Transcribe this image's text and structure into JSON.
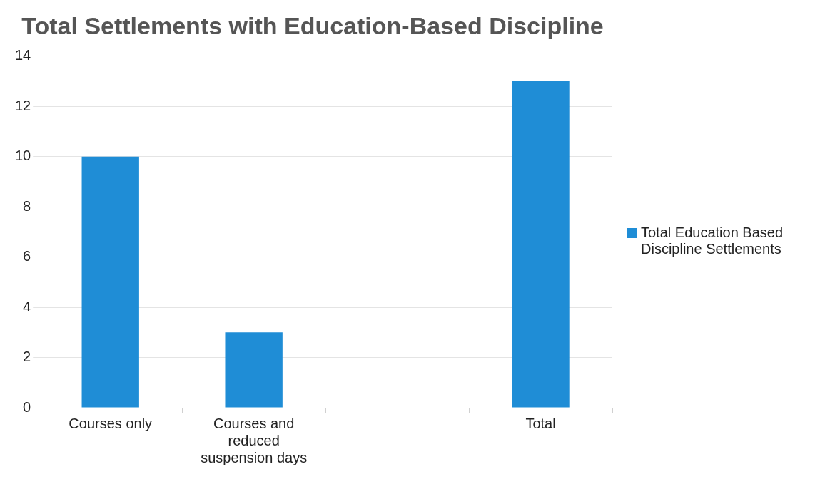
{
  "chart_data": {
    "type": "bar",
    "title": "Total Settlements with Education-Based Discipline",
    "categories": [
      "Courses only",
      "Courses and reduced suspension days",
      null,
      "Total"
    ],
    "series": [
      {
        "name": "Total Education Based Discipline Settlements",
        "color": "#1f8dd6",
        "values": [
          10,
          3,
          null,
          13
        ]
      }
    ],
    "ylim": [
      0,
      14
    ],
    "yticks": [
      0,
      2,
      4,
      6,
      8,
      10,
      12,
      14
    ],
    "grid": "y",
    "legend": "right"
  }
}
